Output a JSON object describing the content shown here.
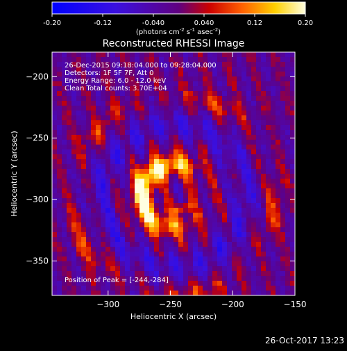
{
  "colorbar": {
    "ticks": [
      "-0.20",
      "-0.12",
      "-0.040",
      "0.040",
      "0.12",
      "0.20"
    ],
    "tick_values": [
      -0.2,
      -0.12,
      -0.04,
      0.04,
      0.12,
      0.2
    ],
    "range": [
      -0.2,
      0.2
    ],
    "unit_parts": [
      "(photons cm",
      "-2",
      " s",
      "-1",
      " asec",
      "-2",
      ")"
    ]
  },
  "chart_data": {
    "type": "heatmap",
    "title": "Reconstructed RHESSI Image",
    "xlabel": "Heliocentric X (arcsec)",
    "ylabel": "Heliocentric Y (arcsec)",
    "xlim": [
      -345,
      -150
    ],
    "ylim": [
      -378,
      -180
    ],
    "x_ticks": [
      -300,
      -250,
      -200,
      -150
    ],
    "y_ticks": [
      -200,
      -250,
      -300,
      -350
    ],
    "x_tick_labels": [
      "−300",
      "−250",
      "−200",
      "−150"
    ],
    "y_tick_labels": [
      "−200",
      "−250",
      "−300",
      "−350"
    ],
    "annotations": [
      "26-Dec-2015 09:18:04.000 to 09:28:04.000",
      "Detectors: 1F 5F 7F, Att 0",
      "Energy Range: 6.0 - 12.0 keV",
      "Clean    Total counts: 3.70E+04"
    ],
    "peak_label": "Position of Peak = [-244,-284]",
    "peak": [
      -244,
      -284
    ],
    "source_ring": {
      "center": [
        -247,
        -297
      ],
      "radius": 34,
      "brightest_at": [
        -268,
        -290
      ]
    }
  },
  "footer": {
    "timestamp": "26-Oct-2017 13:23"
  }
}
